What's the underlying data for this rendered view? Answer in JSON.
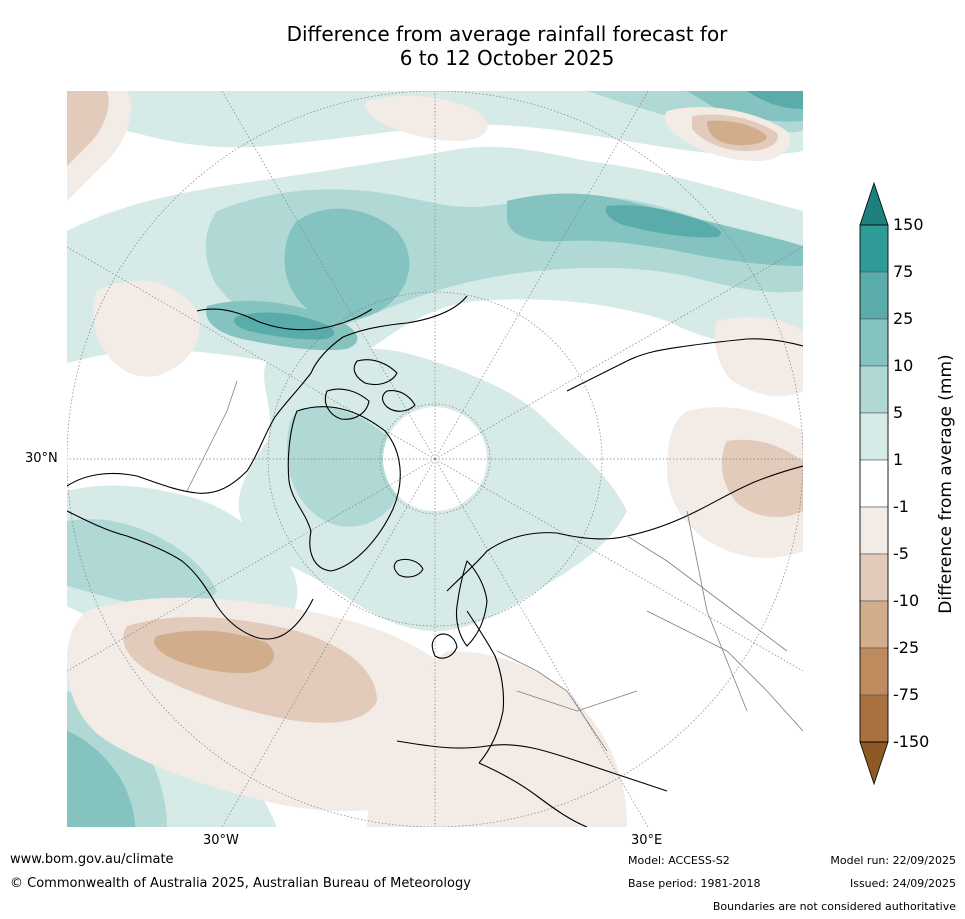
{
  "title": {
    "line1": "Difference from average rainfall forecast for",
    "line2": "6 to 12 October 2025"
  },
  "map": {
    "lat_label": "30°N",
    "lon_labels": [
      "30°W",
      "30°E"
    ],
    "colors": {
      "ocean_pos_1_5": "#d6eae8",
      "pos_5_10": "#b0d9d6",
      "pos_10_25": "#84c3c0",
      "pos_25_75": "#5aacaa",
      "pos_75_150": "#2e9b98",
      "neg_1_5": "#f3ebe6",
      "neg_5_10": "#e2cbba",
      "neg_10_25": "#d1ad8c",
      "coast": "#000000",
      "border": "#808080"
    }
  },
  "colorbar": {
    "title": "Difference from average (mm)",
    "ticks": [
      "150",
      "75",
      "25",
      "10",
      "5",
      "1",
      "-1",
      "-5",
      "-10",
      "-25",
      "-75",
      "-150"
    ],
    "colors": [
      "#1e7f7f",
      "#2e9b98",
      "#5aacaa",
      "#84c3c0",
      "#b0d9d6",
      "#d6eae8",
      "#ffffff",
      "#f3ebe6",
      "#e2cbba",
      "#d1ad8c",
      "#bd8b5e",
      "#a9713e",
      "#8d5a26"
    ]
  },
  "footer": {
    "website": "www.bom.gov.au/climate",
    "copyright": "© Commonwealth of Australia 2025, Australian Bureau of Meteorology",
    "model": "Model: ACCESS-S2",
    "base_period": "Base period: 1981-2018",
    "model_run": "Model run: 22/09/2025",
    "issued": "Issued: 24/09/2025",
    "disclaimer": "Boundaries are not considered authoritative"
  }
}
